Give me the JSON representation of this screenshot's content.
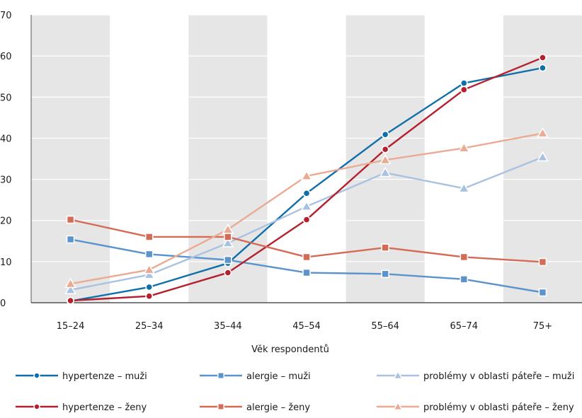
{
  "chart_data": {
    "type": "line",
    "categories": [
      "15–24",
      "25–34",
      "35–44",
      "45–54",
      "55–64",
      "65–74",
      "75+"
    ],
    "xlabel": "Věk respondentů",
    "ylabel": "",
    "ylim": [
      0,
      70
    ],
    "yticks": [
      0,
      10,
      20,
      30,
      40,
      50,
      60,
      70
    ],
    "grid": "horizontal",
    "background_bands": "alternating grey column bands",
    "legend_position": "bottom",
    "series": [
      {
        "name": "hypertenze – muži",
        "marker": "circle",
        "color": "#0f6fa8",
        "values": [
          0.4,
          3.8,
          9.6,
          26.6,
          40.9,
          53.4,
          57.1
        ]
      },
      {
        "name": "alergie – muži",
        "marker": "square",
        "color": "#5b93cc",
        "values": [
          15.4,
          11.8,
          10.4,
          7.3,
          7.0,
          5.7,
          2.5
        ]
      },
      {
        "name": "problémy v oblasti páteře – muži",
        "marker": "triangle",
        "color": "#a9c2e2",
        "values": [
          3.1,
          6.8,
          14.5,
          23.4,
          31.6,
          27.8,
          35.4
        ]
      },
      {
        "name": "hypertenze – ženy",
        "marker": "circle",
        "color": "#b5202e",
        "values": [
          0.5,
          1.6,
          7.3,
          20.2,
          37.3,
          51.8,
          59.6
        ]
      },
      {
        "name": "alergie – ženy",
        "marker": "square",
        "color": "#d56a55",
        "values": [
          20.2,
          16.0,
          16.0,
          11.1,
          13.4,
          11.1,
          9.9
        ]
      },
      {
        "name": "problémy v oblasti páteře – ženy",
        "marker": "triangle",
        "color": "#ebaa92",
        "values": [
          4.6,
          8.0,
          17.8,
          30.8,
          34.7,
          37.6,
          41.2
        ]
      }
    ]
  },
  "colors": {
    "band": "#e6e6e6",
    "gridline": "#ffffff",
    "axis": "#555555"
  }
}
